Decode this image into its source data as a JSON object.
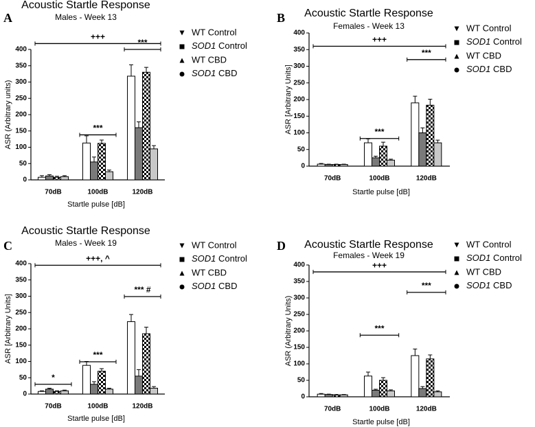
{
  "chart_data": [
    {
      "type": "bar",
      "panel": "A",
      "title": "Acoustic Startle Response",
      "subtitle": "Males - Week 13",
      "ylabel": "ASR (Arbitrary units)",
      "xlabel": "Startle pulse [dB]",
      "categories": [
        "70dB",
        "100dB",
        "120dB"
      ],
      "series": [
        {
          "name": "WT Control",
          "color": "#ffffff",
          "marker": "triangle-down",
          "values": [
            8,
            113,
            318
          ],
          "errors": [
            5,
            22,
            35
          ]
        },
        {
          "name": "SOD1 Control",
          "color": "#7a7a7a",
          "marker": "square",
          "italic_first_word": true,
          "values": [
            12,
            55,
            160
          ],
          "errors": [
            4,
            15,
            18
          ]
        },
        {
          "name": "WT CBD",
          "color": "#ffffff",
          "pattern": "checker",
          "marker": "triangle-up",
          "values": [
            8,
            112,
            330
          ],
          "errors": [
            3,
            10,
            15
          ]
        },
        {
          "name": "SOD1 CBD",
          "color": "#c8c8c8",
          "marker": "circle",
          "italic_first_word": true,
          "values": [
            10,
            25,
            95
          ],
          "errors": [
            3,
            5,
            10
          ]
        }
      ],
      "ylim": [
        0,
        400
      ],
      "yticks": [
        0,
        50,
        100,
        150,
        200,
        250,
        300,
        350,
        400
      ],
      "annotations": [
        "+++",
        "***",
        "***"
      ],
      "legend": "right"
    },
    {
      "type": "bar",
      "panel": "B",
      "title": "Acoustic Startle Response",
      "subtitle": "Females - Week 13",
      "ylabel": "ASR [Arbitrary Units]",
      "xlabel": "Startle pulse [dB]",
      "categories": [
        "70dB",
        "100dB",
        "120dB"
      ],
      "series": [
        {
          "name": "WT Control",
          "color": "#ffffff",
          "marker": "triangle-down",
          "values": [
            6,
            70,
            190
          ],
          "errors": [
            2,
            12,
            20
          ]
        },
        {
          "name": "SOD1 Control",
          "color": "#7a7a7a",
          "marker": "square",
          "italic_first_word": true,
          "values": [
            5,
            25,
            100
          ],
          "errors": [
            1,
            5,
            15
          ]
        },
        {
          "name": "WT CBD",
          "color": "#ffffff",
          "pattern": "checker",
          "marker": "triangle-up",
          "values": [
            5,
            60,
            183
          ],
          "errors": [
            1,
            12,
            18
          ]
        },
        {
          "name": "SOD1 CBD",
          "color": "#c8c8c8",
          "marker": "circle",
          "italic_first_word": true,
          "values": [
            5,
            18,
            70
          ],
          "errors": [
            1,
            3,
            8
          ]
        }
      ],
      "ylim": [
        0,
        400
      ],
      "yticks": [
        0,
        50,
        100,
        150,
        200,
        250,
        300,
        350,
        400
      ],
      "annotations": [
        "+++",
        "***",
        "***"
      ],
      "legend": "right"
    },
    {
      "type": "bar",
      "panel": "C",
      "title": "Acoustic Startle Response",
      "subtitle": "Males - Week 19",
      "ylabel": "ASR [Arbitrary Units]",
      "xlabel": "Startle pulse [dB]",
      "categories": [
        "70dB",
        "100dB",
        "120dB"
      ],
      "series": [
        {
          "name": "WT Control",
          "color": "#ffffff",
          "marker": "triangle-down",
          "values": [
            8,
            88,
            222
          ],
          "errors": [
            2,
            12,
            22
          ]
        },
        {
          "name": "SOD1 Control",
          "color": "#7a7a7a",
          "marker": "square",
          "italic_first_word": true,
          "values": [
            15,
            30,
            55
          ],
          "errors": [
            3,
            8,
            20
          ]
        },
        {
          "name": "WT CBD",
          "color": "#ffffff",
          "pattern": "checker",
          "marker": "triangle-up",
          "values": [
            8,
            70,
            185
          ],
          "errors": [
            2,
            8,
            20
          ]
        },
        {
          "name": "SOD1 CBD",
          "color": "#c8c8c8",
          "marker": "circle",
          "italic_first_word": true,
          "values": [
            10,
            15,
            18
          ],
          "errors": [
            2,
            3,
            5
          ]
        }
      ],
      "ylim": [
        0,
        400
      ],
      "yticks": [
        0,
        50,
        100,
        150,
        200,
        250,
        300,
        350,
        400
      ],
      "annotations": [
        "+++, ^",
        "*",
        "***",
        "*** #"
      ],
      "legend": "right"
    },
    {
      "type": "bar",
      "panel": "D",
      "title": "Acoustic Startle Response",
      "subtitle": "Females - Week 19",
      "ylabel": "ASR (Arbitrary Units)",
      "xlabel": "Startle pulse [dB]",
      "categories": [
        "70dB",
        "100dB",
        "120dB"
      ],
      "series": [
        {
          "name": "WT Control",
          "color": "#ffffff",
          "marker": "triangle-down",
          "values": [
            8,
            63,
            125
          ],
          "errors": [
            2,
            12,
            20
          ]
        },
        {
          "name": "SOD1 Control",
          "color": "#7a7a7a",
          "marker": "square",
          "italic_first_word": true,
          "values": [
            7,
            20,
            25
          ],
          "errors": [
            1,
            3,
            6
          ]
        },
        {
          "name": "WT CBD",
          "color": "#ffffff",
          "pattern": "checker",
          "marker": "triangle-up",
          "values": [
            6,
            50,
            115
          ],
          "errors": [
            1,
            8,
            12
          ]
        },
        {
          "name": "SOD1 CBD",
          "color": "#c8c8c8",
          "marker": "circle",
          "italic_first_word": true,
          "values": [
            6,
            18,
            15
          ],
          "errors": [
            1,
            3,
            3
          ]
        }
      ],
      "ylim": [
        0,
        400
      ],
      "yticks": [
        0,
        50,
        100,
        150,
        200,
        250,
        300,
        350,
        400
      ],
      "annotations": [
        "+++",
        "***",
        "***"
      ],
      "legend": "right"
    }
  ]
}
